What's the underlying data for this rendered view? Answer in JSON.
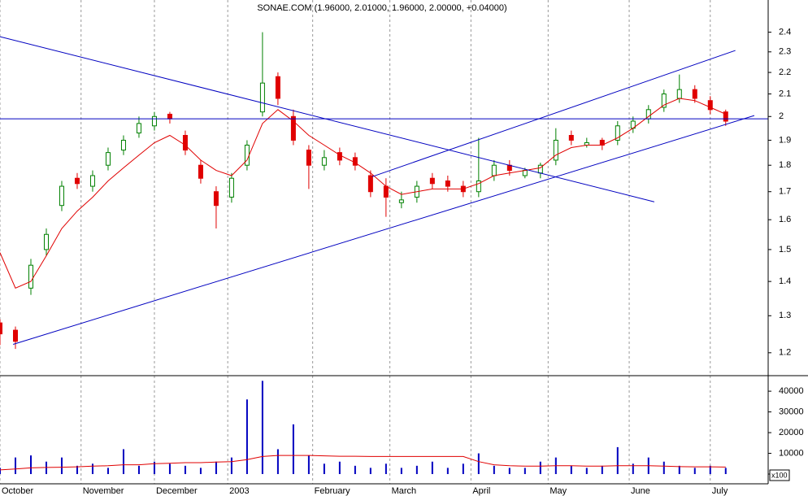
{
  "chart_data": [
    {
      "type": "candlestick",
      "title": "SONAE.COM (1.96000, 2.01000, 1.96000, 2.00000, +0.04000)",
      "x": [
        0,
        4,
        8,
        12,
        16,
        20,
        24,
        28,
        32,
        36,
        40,
        44,
        48,
        52,
        56,
        60,
        64,
        68,
        72,
        76,
        80,
        84,
        88,
        92,
        96,
        100,
        104,
        108,
        112,
        116,
        120,
        124,
        128,
        132,
        136,
        140,
        144,
        148,
        152,
        156,
        160,
        164,
        168,
        172,
        176,
        180,
        184,
        188
      ],
      "open": [
        1.28,
        1.26,
        1.38,
        1.5,
        1.65,
        1.75,
        1.72,
        1.8,
        1.86,
        1.93,
        1.96,
        2.01,
        1.92,
        1.8,
        1.7,
        1.68,
        1.8,
        2.02,
        2.18,
        2.0,
        1.86,
        1.8,
        1.85,
        1.83,
        1.76,
        1.72,
        1.66,
        1.68,
        1.75,
        1.74,
        1.72,
        1.7,
        1.76,
        1.8,
        1.76,
        1.77,
        1.82,
        1.92,
        1.88,
        1.9,
        1.9,
        1.95,
        1.99,
        2.04,
        2.08,
        2.12,
        2.07,
        2.02
      ],
      "high": [
        1.29,
        1.27,
        1.47,
        1.57,
        1.74,
        1.77,
        1.78,
        1.87,
        1.92,
        2.0,
        2.02,
        2.02,
        1.94,
        1.82,
        1.72,
        1.77,
        1.9,
        2.4,
        2.2,
        2.03,
        1.88,
        1.86,
        1.87,
        1.85,
        1.78,
        1.75,
        1.7,
        1.74,
        1.77,
        1.76,
        1.74,
        1.91,
        1.82,
        1.82,
        1.79,
        1.81,
        1.95,
        1.94,
        1.91,
        1.91,
        1.98,
        2.0,
        2.05,
        2.12,
        2.19,
        2.14,
        2.09,
        2.03
      ],
      "low": [
        1.22,
        1.21,
        1.36,
        1.48,
        1.63,
        1.71,
        1.7,
        1.78,
        1.84,
        1.91,
        1.94,
        1.97,
        1.84,
        1.73,
        1.57,
        1.66,
        1.78,
        2.0,
        2.05,
        1.88,
        1.71,
        1.78,
        1.8,
        1.78,
        1.68,
        1.61,
        1.64,
        1.66,
        1.71,
        1.7,
        1.68,
        1.68,
        1.74,
        1.76,
        1.75,
        1.75,
        1.8,
        1.88,
        1.87,
        1.86,
        1.88,
        1.93,
        1.97,
        2.02,
        2.06,
        2.06,
        2.01,
        1.96
      ],
      "close": [
        1.25,
        1.23,
        1.45,
        1.55,
        1.72,
        1.73,
        1.76,
        1.85,
        1.9,
        1.97,
        2.0,
        1.99,
        1.86,
        1.75,
        1.65,
        1.75,
        1.88,
        2.15,
        2.08,
        1.9,
        1.8,
        1.83,
        1.82,
        1.8,
        1.7,
        1.68,
        1.67,
        1.72,
        1.73,
        1.72,
        1.7,
        1.74,
        1.8,
        1.78,
        1.78,
        1.8,
        1.9,
        1.9,
        1.89,
        1.88,
        1.96,
        1.98,
        2.03,
        2.1,
        2.12,
        2.08,
        2.03,
        1.98
      ],
      "up_color": "#008000",
      "down_color": "#e00000",
      "overlay": {
        "color": "#e00000",
        "values": [
          1.49,
          1.38,
          1.4,
          1.48,
          1.57,
          1.63,
          1.68,
          1.74,
          1.79,
          1.84,
          1.89,
          1.92,
          1.88,
          1.82,
          1.78,
          1.76,
          1.82,
          1.97,
          2.03,
          1.98,
          1.92,
          1.88,
          1.84,
          1.81,
          1.77,
          1.72,
          1.69,
          1.7,
          1.71,
          1.71,
          1.71,
          1.73,
          1.76,
          1.77,
          1.78,
          1.79,
          1.84,
          1.87,
          1.88,
          1.88,
          1.91,
          1.95,
          2.0,
          2.05,
          2.08,
          2.07,
          2.04,
          2.01
        ]
      },
      "trendlines": {
        "color": "#0000c0",
        "lines": [
          {
            "x": [
              0,
              169.5
            ],
            "y": [
              2.377,
              1.663
            ]
          },
          {
            "x": [
              3.4,
              195.4
            ],
            "y": [
              1.222,
              2.004
            ]
          },
          {
            "x": [
              96.4,
              190.5
            ],
            "y": [
              1.756,
              2.307
            ]
          },
          {
            "x": [
              0,
              199
            ],
            "y": [
              1.99,
              1.99
            ]
          }
        ]
      },
      "log_scale": true,
      "xlim": [
        0,
        199
      ],
      "ylim": [
        1.142,
        2.573
      ],
      "yticks": [
        1.2,
        1.3,
        1.4,
        1.5,
        1.6,
        1.7,
        1.8,
        1.9,
        2.0,
        2.1,
        2.2,
        2.3,
        2.4
      ]
    },
    {
      "type": "bar",
      "unit_label": "x100",
      "color": "#0000c0",
      "x": [
        0,
        4,
        8,
        12,
        16,
        20,
        24,
        28,
        32,
        36,
        40,
        44,
        48,
        52,
        56,
        60,
        64,
        68,
        72,
        76,
        80,
        84,
        88,
        92,
        96,
        100,
        104,
        108,
        112,
        116,
        120,
        124,
        128,
        132,
        136,
        140,
        144,
        148,
        152,
        156,
        160,
        164,
        168,
        172,
        176,
        180,
        184,
        188
      ],
      "values": [
        3000,
        8000,
        9000,
        6000,
        8000,
        4000,
        5000,
        3000,
        12000,
        4000,
        6000,
        5000,
        4000,
        3000,
        6000,
        8000,
        36000,
        45000,
        12000,
        24000,
        9000,
        5000,
        6000,
        4000,
        3000,
        5000,
        3000,
        4000,
        6000,
        3000,
        5000,
        10000,
        4000,
        3000,
        3000,
        6000,
        8000,
        4000,
        3000,
        4000,
        13000,
        5000,
        8000,
        6000,
        4000,
        3000,
        4000,
        3000
      ],
      "overlay": {
        "color": "#e00000",
        "values": [
          2000,
          2500,
          3000,
          3200,
          3300,
          3500,
          3800,
          4000,
          4500,
          4500,
          5000,
          5200,
          5500,
          5500,
          5800,
          6000,
          7000,
          8500,
          9000,
          9000,
          9000,
          8800,
          8600,
          8600,
          8500,
          8500,
          8500,
          8500,
          8500,
          8500,
          8500,
          6000,
          4500,
          4000,
          3800,
          3800,
          4000,
          4000,
          3800,
          3800,
          4000,
          4000,
          4000,
          3800,
          3600,
          3500,
          3500,
          3400
        ]
      },
      "xlim": [
        0,
        199
      ],
      "ylim": [
        -4700,
        47500
      ],
      "yticks": [
        0,
        10000,
        20000,
        30000,
        40000
      ],
      "xticks": [
        {
          "value": 0,
          "label": "October"
        },
        {
          "value": 21,
          "label": "November"
        },
        {
          "value": 40,
          "label": "December"
        },
        {
          "value": 59,
          "label": "2003"
        },
        {
          "value": 81,
          "label": "February"
        },
        {
          "value": 101,
          "label": "March"
        },
        {
          "value": 122,
          "label": "April"
        },
        {
          "value": 142,
          "label": "May"
        },
        {
          "value": 163,
          "label": "June"
        },
        {
          "value": 184,
          "label": "July"
        }
      ]
    }
  ]
}
